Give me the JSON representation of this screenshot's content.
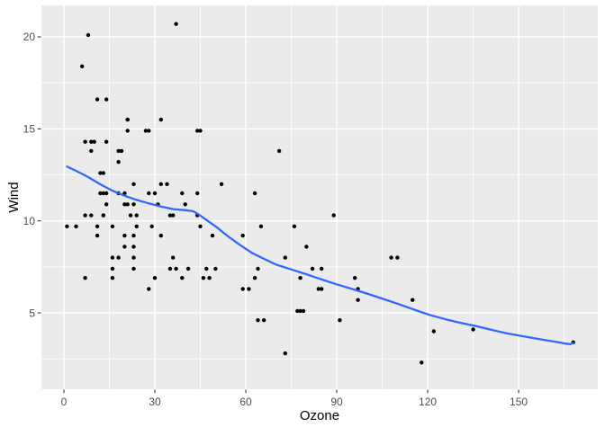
{
  "chart_data": {
    "type": "scatter",
    "title": "",
    "xlabel": "Ozone",
    "ylabel": "Wind",
    "xlim": [
      -7.43,
      176.12
    ],
    "ylim": [
      0.85,
      21.71
    ],
    "x_major_ticks": [
      0,
      30,
      60,
      90,
      120,
      150
    ],
    "x_minor_ticks": [
      15,
      45,
      75,
      105,
      135,
      165
    ],
    "y_major_ticks": [
      5,
      10,
      15,
      20
    ],
    "y_minor_ticks": [
      2.5,
      7.5,
      12.5,
      17.5
    ],
    "grid": true,
    "legend_position": "none",
    "theme": "ggplot-grey",
    "series": [
      {
        "name": "observations",
        "type": "scatter",
        "points": [
          [
            41,
            7.4
          ],
          [
            36,
            8
          ],
          [
            12,
            12.6
          ],
          [
            18,
            11.5
          ],
          [
            28,
            14.9
          ],
          [
            23,
            8.6
          ],
          [
            19,
            13.8
          ],
          [
            8,
            20.1
          ],
          [
            7,
            6.9
          ],
          [
            16,
            9.7
          ],
          [
            11,
            9.2
          ],
          [
            14,
            10.9
          ],
          [
            18,
            13.2
          ],
          [
            14,
            11.5
          ],
          [
            34,
            12
          ],
          [
            6,
            18.4
          ],
          [
            30,
            11.5
          ],
          [
            11,
            9.7
          ],
          [
            1,
            9.7
          ],
          [
            11,
            16.6
          ],
          [
            4,
            9.7
          ],
          [
            32,
            12
          ],
          [
            23,
            12
          ],
          [
            45,
            14.9
          ],
          [
            115,
            5.7
          ],
          [
            37,
            7.4
          ],
          [
            29,
            9.7
          ],
          [
            71,
            13.8
          ],
          [
            39,
            11.5
          ],
          [
            23,
            8
          ],
          [
            21,
            14.9
          ],
          [
            37,
            20.7
          ],
          [
            20,
            9.2
          ],
          [
            12,
            11.5
          ],
          [
            13,
            10.3
          ],
          [
            135,
            4.1
          ],
          [
            49,
            9.2
          ],
          [
            32,
            9.2
          ],
          [
            64,
            4.6
          ],
          [
            40,
            10.9
          ],
          [
            77,
            5.1
          ],
          [
            97,
            6.3
          ],
          [
            97,
            5.7
          ],
          [
            85,
            7.4
          ],
          [
            10,
            14.3
          ],
          [
            27,
            14.9
          ],
          [
            7,
            14.3
          ],
          [
            48,
            6.9
          ],
          [
            35,
            10.3
          ],
          [
            61,
            6.3
          ],
          [
            79,
            5.1
          ],
          [
            63,
            6.9
          ],
          [
            16,
            6.9
          ],
          [
            80,
            8.6
          ],
          [
            108,
            8
          ],
          [
            20,
            8.6
          ],
          [
            52,
            12
          ],
          [
            82,
            7.4
          ],
          [
            50,
            7.4
          ],
          [
            64,
            7.4
          ],
          [
            59,
            9.2
          ],
          [
            39,
            6.9
          ],
          [
            9,
            13.8
          ],
          [
            16,
            7.4
          ],
          [
            78,
            6.9
          ],
          [
            35,
            7.4
          ],
          [
            66,
            4.6
          ],
          [
            122,
            4
          ],
          [
            89,
            10.3
          ],
          [
            110,
            8
          ],
          [
            44,
            11.5
          ],
          [
            28,
            11.5
          ],
          [
            65,
            9.7
          ],
          [
            22,
            10.3
          ],
          [
            59,
            6.3
          ],
          [
            23,
            7.4
          ],
          [
            31,
            10.9
          ],
          [
            44,
            10.3
          ],
          [
            21,
            15.5
          ],
          [
            9,
            14.3
          ],
          [
            45,
            9.7
          ],
          [
            168,
            3.4
          ],
          [
            73,
            8
          ],
          [
            76,
            9.7
          ],
          [
            118,
            2.3
          ],
          [
            84,
            6.3
          ],
          [
            85,
            6.3
          ],
          [
            96,
            6.9
          ],
          [
            78,
            5.1
          ],
          [
            73,
            2.8
          ],
          [
            91,
            4.6
          ],
          [
            47,
            7.4
          ],
          [
            32,
            15.5
          ],
          [
            20,
            10.9
          ],
          [
            23,
            10.9
          ],
          [
            21,
            10.9
          ],
          [
            24,
            9.7
          ],
          [
            44,
            14.9
          ],
          [
            21,
            15.5
          ],
          [
            28,
            6.3
          ],
          [
            9,
            10.3
          ],
          [
            13,
            11.5
          ],
          [
            46,
            6.9
          ],
          [
            18,
            13.8
          ],
          [
            13,
            10.3
          ],
          [
            24,
            10.3
          ],
          [
            16,
            8
          ],
          [
            13,
            12.6
          ],
          [
            23,
            9.2
          ],
          [
            36,
            10.3
          ],
          [
            7,
            10.3
          ],
          [
            14,
            16.6
          ],
          [
            30,
            6.9
          ],
          [
            14,
            14.3
          ],
          [
            18,
            8
          ],
          [
            20,
            11.5
          ],
          [
            63,
            11.5
          ]
        ]
      },
      {
        "name": "loess-smooth",
        "type": "line",
        "points": [
          [
            1,
            12.95
          ],
          [
            4,
            12.72
          ],
          [
            8,
            12.38
          ],
          [
            12,
            11.99
          ],
          [
            16,
            11.64
          ],
          [
            20,
            11.37
          ],
          [
            24,
            11.14
          ],
          [
            28,
            10.95
          ],
          [
            32,
            10.78
          ],
          [
            36,
            10.64
          ],
          [
            40,
            10.58
          ],
          [
            42.5,
            10.53
          ],
          [
            44,
            10.4
          ],
          [
            47,
            10.05
          ],
          [
            50,
            9.7
          ],
          [
            54,
            9.18
          ],
          [
            58,
            8.7
          ],
          [
            62,
            8.26
          ],
          [
            66,
            7.94
          ],
          [
            70,
            7.62
          ],
          [
            75,
            7.36
          ],
          [
            80,
            7.1
          ],
          [
            85,
            6.82
          ],
          [
            90,
            6.55
          ],
          [
            95,
            6.3
          ],
          [
            100,
            6.05
          ],
          [
            105,
            5.78
          ],
          [
            110,
            5.5
          ],
          [
            116,
            5.15
          ],
          [
            121,
            4.87
          ],
          [
            126,
            4.65
          ],
          [
            131,
            4.45
          ],
          [
            136,
            4.28
          ],
          [
            141,
            4.08
          ],
          [
            146,
            3.89
          ],
          [
            151,
            3.74
          ],
          [
            156,
            3.6
          ],
          [
            160,
            3.49
          ],
          [
            163,
            3.41
          ],
          [
            165.5,
            3.33
          ],
          [
            167,
            3.3
          ],
          [
            168,
            3.36
          ]
        ]
      }
    ],
    "colors": {
      "figure_background": "#FFFFFF",
      "panel_background": "#EBEBEB",
      "grid_major": "#FFFFFF",
      "grid_minor": "#FFFFFF",
      "point": "#000000",
      "smooth_line": "#3366FF",
      "tick_label": "#4D4D4D",
      "tick_mark": "#333333",
      "axis_title": "#000000"
    }
  }
}
